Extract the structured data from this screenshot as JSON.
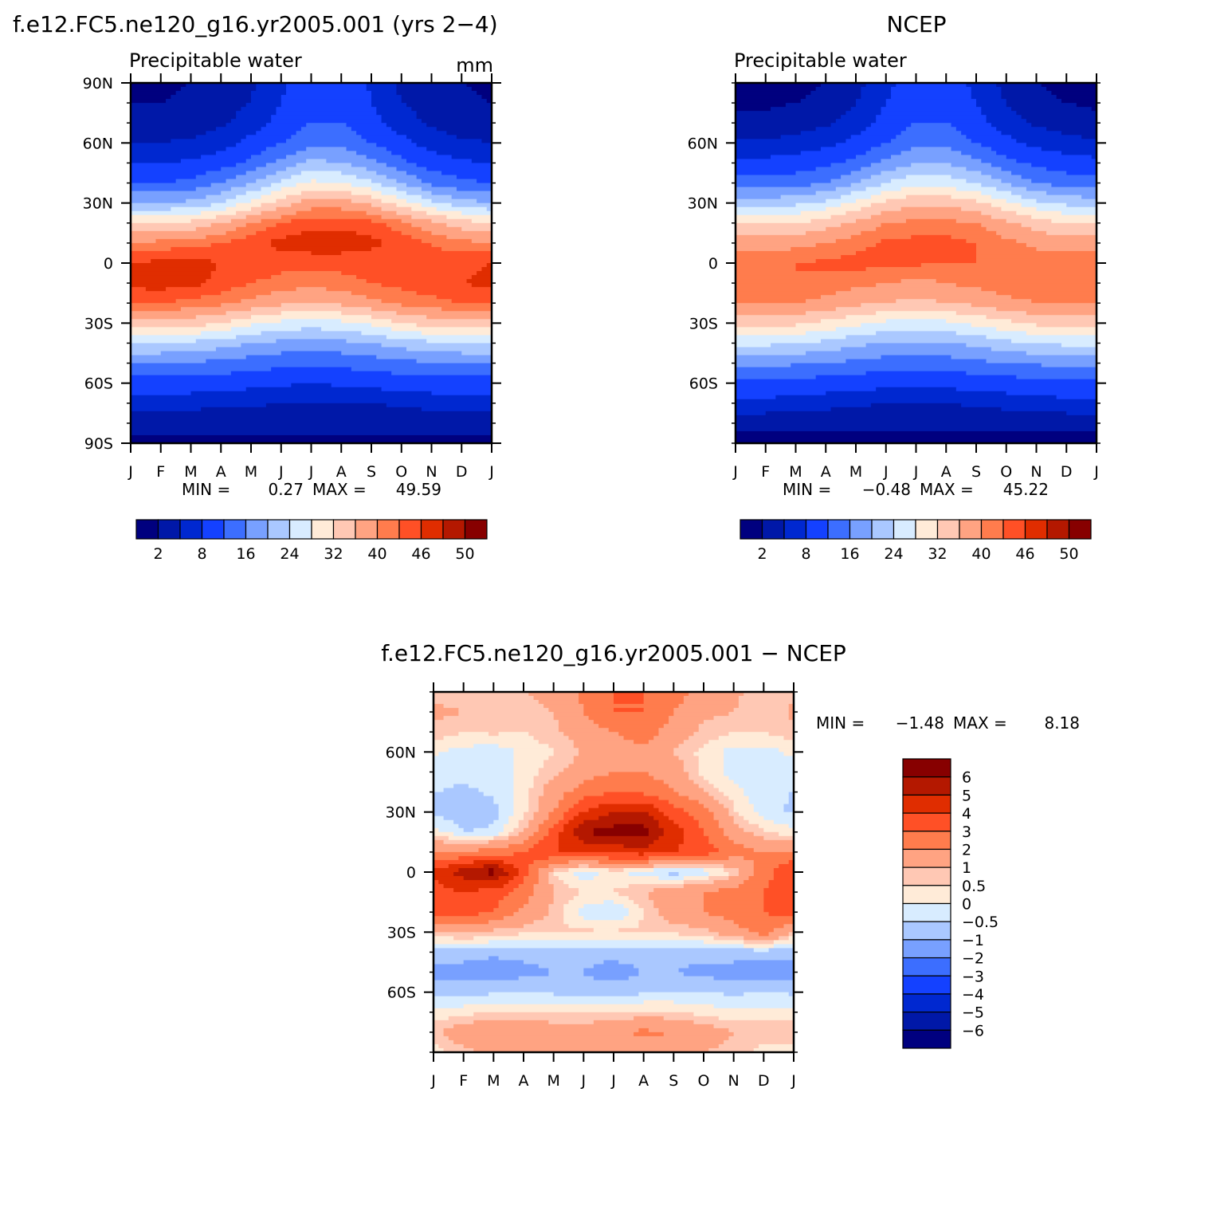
{
  "chart_data": [
    {
      "type": "heatmap",
      "title": "f.e12.FC5.ne120_g16.yr2005.001 (yrs 2−4)",
      "subtitle": "Precipitable water",
      "units": "mm",
      "x_ticks": [
        "J",
        "F",
        "M",
        "A",
        "M",
        "J",
        "J",
        "A",
        "S",
        "O",
        "N",
        "D",
        "J"
      ],
      "y_range": [
        -90,
        90
      ],
      "y_ticks": [
        {
          "value": 90,
          "label": "90N"
        },
        {
          "value": 60,
          "label": "60N"
        },
        {
          "value": 30,
          "label": "30N"
        },
        {
          "value": 0,
          "label": "0"
        },
        {
          "value": -30,
          "label": "30S"
        },
        {
          "value": -60,
          "label": "60S"
        },
        {
          "value": -90,
          "label": "90S"
        }
      ],
      "stats": {
        "min_label": "MIN =",
        "min": "0.27",
        "max_label": "MAX =",
        "max": "49.59"
      },
      "colorbar": {
        "orientation": "horizontal",
        "labels": [
          "2",
          "8",
          "16",
          "24",
          "32",
          "40",
          "46",
          "50"
        ],
        "colors": [
          "#00007f",
          "#0018a8",
          "#0028d0",
          "#1441ff",
          "#3c6eff",
          "#78a0ff",
          "#aac8ff",
          "#d8ecff",
          "#ffebd8",
          "#ffc8b4",
          "#ffa382",
          "#ff7c4d",
          "#ff5026",
          "#e02d00",
          "#b41800",
          "#870000"
        ]
      },
      "field": {
        "lats": [
          -90,
          -80,
          -70,
          -60,
          -50,
          -40,
          -30,
          -20,
          -10,
          0,
          10,
          20,
          30,
          40,
          50,
          60,
          70,
          80,
          90
        ],
        "months": [
          0,
          1,
          2,
          3,
          4,
          5,
          6,
          7,
          8,
          9,
          10,
          11,
          12
        ],
        "values": [
          [
            1,
            1,
            1.3,
            1.5,
            1.5,
            1.5,
            1.5,
            1.5,
            1.5,
            1.5,
            1.3,
            1,
            1
          ],
          [
            3,
            3,
            3,
            3,
            3,
            3,
            3,
            3,
            3,
            3,
            3,
            3,
            3
          ],
          [
            6,
            6,
            6,
            5.5,
            5.5,
            5,
            5,
            5,
            5,
            5.5,
            6,
            6,
            6
          ],
          [
            10,
            10,
            10,
            9.5,
            9,
            8.5,
            8,
            8.5,
            9,
            9.5,
            10,
            10,
            10
          ],
          [
            16,
            16,
            15.5,
            15,
            14,
            13,
            12.5,
            13,
            14,
            15,
            15.5,
            16,
            16
          ],
          [
            24,
            24,
            23,
            22,
            20,
            19,
            18.5,
            19,
            20,
            22,
            23,
            24,
            24
          ],
          [
            35,
            35,
            34,
            32,
            29,
            27,
            26,
            27,
            29,
            32,
            34,
            35,
            35
          ],
          [
            43,
            43,
            42,
            41,
            39,
            37,
            36,
            37,
            39,
            41,
            42,
            43,
            43
          ],
          [
            47,
            47.5,
            47,
            45,
            43,
            42,
            41,
            42,
            43,
            44,
            45,
            46,
            47
          ],
          [
            46,
            47,
            47,
            46,
            45,
            44,
            44,
            44,
            44,
            44,
            44,
            45,
            46
          ],
          [
            40,
            41,
            42,
            43,
            45,
            47,
            48,
            48,
            47,
            45,
            43,
            41,
            40
          ],
          [
            32,
            32,
            33,
            36,
            40,
            43,
            45,
            45,
            44,
            41,
            37,
            34,
            32
          ],
          [
            20,
            20,
            21,
            24,
            29,
            34,
            38,
            38,
            35,
            30,
            25,
            22,
            20
          ],
          [
            12,
            12,
            13,
            16,
            20,
            25,
            29,
            28,
            25,
            20,
            15,
            13,
            12
          ],
          [
            8,
            8,
            8.5,
            10,
            13,
            17,
            21,
            20,
            17,
            13,
            10,
            8.5,
            8
          ],
          [
            5,
            5,
            5.5,
            6.5,
            9,
            12,
            15,
            15,
            12,
            9,
            6.5,
            5.5,
            5
          ],
          [
            3,
            3,
            3.5,
            4.5,
            6.5,
            9,
            12,
            12,
            9,
            6.5,
            4.5,
            3.5,
            3
          ],
          [
            2,
            2,
            2.5,
            3.5,
            5,
            8,
            11,
            11,
            8,
            5,
            3.5,
            2.5,
            2
          ],
          [
            1.5,
            1.5,
            2,
            3,
            4.5,
            7.5,
            10.5,
            10.5,
            7.5,
            4.5,
            3,
            2,
            1.5
          ]
        ]
      }
    },
    {
      "type": "heatmap",
      "title": "NCEP",
      "subtitle": "Precipitable water",
      "x_ticks": [
        "J",
        "F",
        "M",
        "A",
        "M",
        "J",
        "J",
        "A",
        "S",
        "O",
        "N",
        "D",
        "J"
      ],
      "y_range": [
        -90,
        90
      ],
      "y_ticks": [
        {
          "value": 60,
          "label": "60N"
        },
        {
          "value": 30,
          "label": "30N"
        },
        {
          "value": 0,
          "label": "0"
        },
        {
          "value": -30,
          "label": "30S"
        },
        {
          "value": -60,
          "label": "60S"
        }
      ],
      "stats": {
        "min_label": "MIN =",
        "min": "−0.48",
        "max_label": "MAX =",
        "max": "45.22"
      },
      "colorbar": {
        "orientation": "horizontal",
        "labels": [
          "2",
          "8",
          "16",
          "24",
          "32",
          "40",
          "46",
          "50"
        ],
        "colors": [
          "#00007f",
          "#0018a8",
          "#0028d0",
          "#1441ff",
          "#3c6eff",
          "#78a0ff",
          "#aac8ff",
          "#d8ecff",
          "#ffebd8",
          "#ffc8b4",
          "#ffa382",
          "#ff7c4d",
          "#ff5026",
          "#e02d00",
          "#b41800",
          "#870000"
        ]
      },
      "field": {
        "lats": [
          -90,
          -80,
          -70,
          -60,
          -50,
          -40,
          -30,
          -20,
          -10,
          0,
          10,
          20,
          30,
          40,
          50,
          60,
          70,
          80,
          90
        ],
        "months": [
          0,
          1,
          2,
          3,
          4,
          5,
          6,
          7,
          8,
          9,
          10,
          11,
          12
        ],
        "values": [
          [
            0.5,
            0.5,
            0.8,
            1,
            1,
            1,
            1,
            1,
            1,
            1,
            0.8,
            0.5,
            0.5
          ],
          [
            3,
            3,
            3,
            3,
            2.8,
            2.5,
            2.5,
            2.5,
            2.8,
            3,
            3,
            3,
            3
          ],
          [
            7,
            7,
            6.5,
            6,
            5.5,
            5,
            5,
            5,
            5.5,
            6,
            6.5,
            7,
            7
          ],
          [
            11,
            11,
            10.5,
            10,
            9.5,
            9,
            8.5,
            9,
            9.5,
            10,
            10.5,
            11,
            11
          ],
          [
            17,
            17,
            16.5,
            16,
            15,
            14,
            13.5,
            14,
            15,
            16,
            16.5,
            17,
            17
          ],
          [
            25,
            25,
            24,
            23,
            21,
            20,
            19.5,
            20,
            21,
            23,
            24,
            25,
            25
          ],
          [
            34,
            34,
            33,
            31,
            29,
            27,
            26.5,
            27,
            29,
            31,
            33,
            34,
            34
          ],
          [
            40,
            40,
            40,
            39,
            37,
            36,
            35,
            36,
            37,
            39,
            40,
            40,
            40
          ],
          [
            43,
            43,
            43,
            42,
            41,
            40,
            39,
            40,
            41,
            42,
            42,
            43,
            43
          ],
          [
            42,
            42,
            43,
            43.5,
            44,
            44,
            43.5,
            43,
            43,
            42.5,
            42,
            42,
            42
          ],
          [
            38,
            38,
            39,
            40,
            42,
            43.5,
            44,
            44,
            43,
            41,
            39,
            38,
            38
          ],
          [
            32,
            32,
            32,
            34,
            37,
            40,
            41,
            41,
            40,
            37,
            34,
            32,
            32
          ],
          [
            22,
            22,
            23,
            25,
            29,
            33,
            35,
            35,
            33,
            29,
            25,
            23,
            22
          ],
          [
            14,
            14,
            14.5,
            16,
            20,
            24,
            27,
            26,
            24,
            20,
            16,
            14.5,
            14
          ],
          [
            9,
            9,
            9.5,
            11,
            13,
            17,
            20,
            20,
            17,
            13,
            11,
            9.5,
            9
          ],
          [
            5.5,
            5.5,
            6,
            7,
            9,
            12,
            15,
            15,
            12,
            9,
            7,
            6,
            5.5
          ],
          [
            3,
            3,
            3.5,
            4.5,
            6.5,
            9,
            12,
            12,
            9,
            6.5,
            4.5,
            3.5,
            3
          ],
          [
            1.5,
            1.5,
            2,
            3,
            5,
            8,
            11,
            11,
            8,
            5,
            3,
            2,
            1.5
          ],
          [
            0.5,
            0.5,
            1,
            2,
            4,
            7,
            10,
            10,
            7,
            4,
            2,
            1,
            0.5
          ]
        ]
      }
    },
    {
      "type": "heatmap",
      "title": "f.e12.FC5.ne120_g16.yr2005.001 − NCEP",
      "x_ticks": [
        "J",
        "F",
        "M",
        "A",
        "M",
        "J",
        "J",
        "A",
        "S",
        "O",
        "N",
        "D",
        "J"
      ],
      "y_range": [
        -90,
        90
      ],
      "y_ticks": [
        {
          "value": 60,
          "label": "60N"
        },
        {
          "value": 30,
          "label": "30N"
        },
        {
          "value": 0,
          "label": "0"
        },
        {
          "value": -30,
          "label": "30S"
        },
        {
          "value": -60,
          "label": "60S"
        }
      ],
      "stats": {
        "min_label": "MIN =",
        "min": "−1.48",
        "max_label": "MAX =",
        "max": "8.18"
      },
      "colorbar": {
        "orientation": "vertical",
        "labels": [
          "6",
          "5",
          "4",
          "3",
          "2",
          "1",
          "0.5",
          "0",
          "−0.5",
          "−1",
          "−2",
          "−3",
          "−4",
          "−5",
          "−6"
        ],
        "levels": [
          -6,
          -5,
          -4,
          -3,
          -2,
          -1,
          -0.5,
          0,
          0.5,
          1,
          2,
          3,
          4,
          5,
          6
        ],
        "colors": [
          "#00007f",
          "#0018a8",
          "#0028d0",
          "#1441ff",
          "#3c6eff",
          "#78a0ff",
          "#aac8ff",
          "#d8ecff",
          "#ffebd8",
          "#ffc8b4",
          "#ffa382",
          "#ff7c4d",
          "#ff5026",
          "#e02d00",
          "#b41800",
          "#870000"
        ]
      },
      "field": {
        "lats": [
          -90,
          -80,
          -70,
          -60,
          -50,
          -40,
          -30,
          -20,
          -10,
          0,
          10,
          20,
          30,
          40,
          50,
          60,
          70,
          80,
          90
        ],
        "months": [
          0,
          1,
          2,
          3,
          4,
          5,
          6,
          7,
          8,
          9,
          10,
          11,
          12
        ],
        "values": [
          [
            0.3,
            0.8,
            1.2,
            1,
            1,
            1.2,
            1.2,
            1.5,
            1.5,
            1,
            0.8,
            0.3,
            0.3
          ],
          [
            0.8,
            1.5,
            2,
            1.8,
            1.5,
            1.5,
            1.8,
            2.2,
            2,
            1.5,
            1,
            0.8,
            0.8
          ],
          [
            0.2,
            0.3,
            0.5,
            0.5,
            0.4,
            0.4,
            0.4,
            0.6,
            0.5,
            0.3,
            0.1,
            0.2,
            0.2
          ],
          [
            -0.6,
            -0.7,
            -0.6,
            -0.5,
            -0.6,
            -0.8,
            -0.7,
            -0.6,
            -0.5,
            -0.5,
            -0.6,
            -0.5,
            -0.6
          ],
          [
            -1.2,
            -1.2,
            -1.3,
            -1.2,
            -1,
            -1,
            -1.3,
            -1,
            -1,
            -1.2,
            -1.2,
            -1.3,
            -1.2
          ],
          [
            -0.8,
            -0.8,
            -0.9,
            -0.8,
            -0.8,
            -0.8,
            -0.8,
            -0.7,
            -0.8,
            -0.8,
            -0.8,
            -0.8,
            -0.8
          ],
          [
            0.8,
            1.2,
            0.8,
            0.6,
            0.6,
            0.6,
            0.6,
            0.6,
            0.6,
            0.8,
            1.5,
            2.5,
            0.8
          ],
          [
            3.5,
            3.5,
            3,
            1.8,
            0.8,
            -0.3,
            -0.6,
            0.5,
            1.5,
            2,
            2.5,
            3,
            3.5
          ],
          [
            3.5,
            4,
            3.5,
            2.5,
            1,
            0.5,
            0.5,
            1,
            1.5,
            2,
            2.5,
            3,
            3.5
          ],
          [
            4.2,
            5.5,
            6.5,
            3.5,
            0.5,
            -0.4,
            0.2,
            -0.3,
            -0.8,
            -0.4,
            0.5,
            2.5,
            4.2
          ],
          [
            2,
            2,
            2.5,
            3,
            4,
            4,
            4.3,
            4.5,
            4,
            3.5,
            2.5,
            2,
            2
          ],
          [
            0.2,
            -0.5,
            -0.4,
            1,
            3.5,
            6,
            6.5,
            6.5,
            4.5,
            3,
            1.5,
            0.5,
            0.2
          ],
          [
            -0.6,
            -0.8,
            -0.7,
            0.3,
            2,
            4,
            5,
            5,
            3.5,
            2.5,
            0.6,
            -0.3,
            -0.6
          ],
          [
            -0.5,
            -0.6,
            -0.4,
            0.2,
            1.5,
            2.5,
            3,
            2.8,
            2,
            1,
            0.2,
            -0.4,
            -0.5
          ],
          [
            -0.2,
            -0.4,
            -0.3,
            0.2,
            0.8,
            1.5,
            2,
            2,
            1.5,
            0.3,
            -0.2,
            -0.3,
            -0.2
          ],
          [
            0.1,
            -0.2,
            -0.3,
            0.1,
            0.5,
            1,
            1.5,
            1.8,
            1,
            0.3,
            -0.2,
            -0.2,
            0.1
          ],
          [
            0.8,
            0.5,
            0.6,
            0.5,
            0.8,
            1.5,
            2,
            2.5,
            1.5,
            0.8,
            0.5,
            0.5,
            0.8
          ],
          [
            1.2,
            1,
            1,
            0.8,
            1,
            2,
            3,
            3,
            2,
            1.2,
            1,
            0.5,
            1.2
          ],
          [
            0.8,
            0.5,
            0.7,
            1,
            1.2,
            2.2,
            3,
            3,
            2.5,
            1.5,
            1.2,
            0.5,
            0.8
          ]
        ]
      }
    }
  ]
}
